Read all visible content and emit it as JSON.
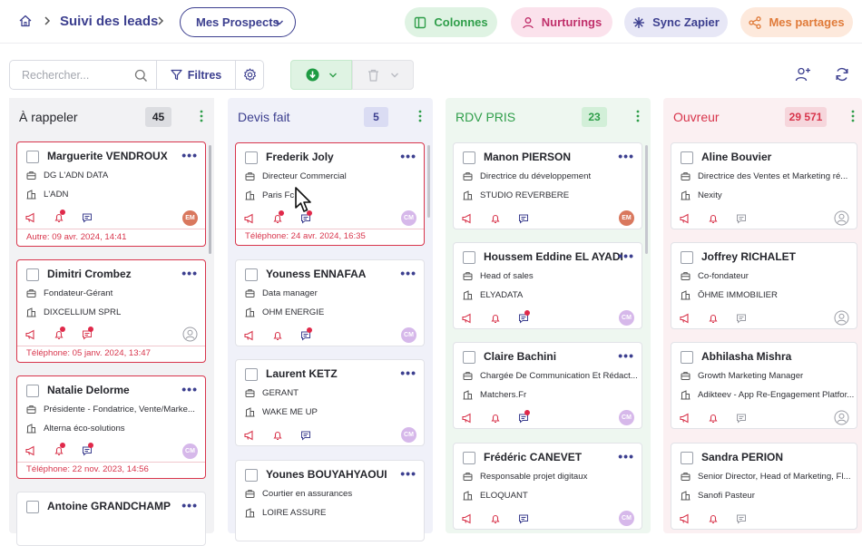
{
  "breadcrumb": {
    "title": "Suivi des leads"
  },
  "view_select": {
    "label": "Mes Prospects"
  },
  "top_buttons": {
    "colonnes": "Colonnes",
    "nurturings": "Nurturings",
    "sync": "Sync Zapier",
    "partages": "Mes partages"
  },
  "toolbar": {
    "search_placeholder": "Rechercher...",
    "filters_label": "Filtres"
  },
  "columns": [
    {
      "title": "À rappeler",
      "count": "45",
      "cards": [
        {
          "name": "Marguerite VENDROUX",
          "role": "DG L'ADN DATA",
          "company": "L'ADN",
          "avatar": "EM",
          "date": "Autre: 09 avr. 2024, 14:41"
        },
        {
          "name": "Dimitri Crombez",
          "role": "Fondateur-Gérant",
          "company": "DIXCELLIUM SPRL",
          "avatar": "",
          "date": "Téléphone: 05 janv. 2024, 13:47"
        },
        {
          "name": "Natalie Delorme",
          "role": "Présidente - Fondatrice, Vente/Marke...",
          "company": "Alterna éco-solutions",
          "avatar": "CM",
          "date": "Téléphone: 22 nov. 2023, 14:56"
        },
        {
          "name": "Antoine GRANDCHAMP"
        }
      ]
    },
    {
      "title": "Devis fait",
      "count": "5",
      "cards": [
        {
          "name": "Frederik Joly",
          "role": "Directeur Commercial",
          "company": "Paris Fc",
          "avatar": "CM",
          "date": "Téléphone: 24 avr. 2024, 16:35"
        },
        {
          "name": "Youness ENNAFAA",
          "role": "Data manager",
          "company": "OHM ENERGIE",
          "avatar": "CM"
        },
        {
          "name": "Laurent KETZ",
          "role": "GERANT",
          "company": "WAKE ME UP",
          "avatar": "CM"
        },
        {
          "name": "Younes BOUYAHYAOUI",
          "role": "Courtier en assurances",
          "company": "LOIRE ASSURE"
        }
      ]
    },
    {
      "title": "RDV PRIS",
      "count": "23",
      "cards": [
        {
          "name": "Manon PIERSON",
          "role": "Directrice du développement",
          "company": "STUDIO REVERBERE",
          "avatar": "EM"
        },
        {
          "name": "Houssem Eddine EL AYADI",
          "role": "Head of sales",
          "company": "ELYADATA",
          "avatar": "CM"
        },
        {
          "name": "Claire Bachini",
          "role": "Chargée De Communication Et Rédact...",
          "company": "Matchers.Fr",
          "avatar": "CM"
        },
        {
          "name": "Frédéric CANEVET",
          "role": "Responsable projet digitaux",
          "company": "ELOQUANT",
          "avatar": "CM"
        }
      ]
    },
    {
      "title": "Ouvreur",
      "count": "29 571",
      "cards": [
        {
          "name": "Aline Bouvier",
          "role": "Directrice des Ventes et Marketing ré...",
          "company": "Nexity"
        },
        {
          "name": "Joffrey RICHALET",
          "role": "Co-fondateur",
          "company": "ÔHME IMMOBILIER"
        },
        {
          "name": "Abhilasha Mishra",
          "role": "Growth Marketing Manager",
          "company": "Adikteev - App Re-Engagement Platfor..."
        },
        {
          "name": "Sandra PERION",
          "role": "Senior Director, Head of Marketing, Fl...",
          "company": "Sanofi Pasteur"
        }
      ]
    }
  ],
  "colors": {
    "primary": "#3c3f8f",
    "danger": "#d8354c",
    "green": "#2f9e4a",
    "colonnes_bg": "#dff3e3",
    "nurturings_bg": "#fbe2ec",
    "sync_bg": "#e7e7f6",
    "partages_bg": "#fde9dc"
  }
}
